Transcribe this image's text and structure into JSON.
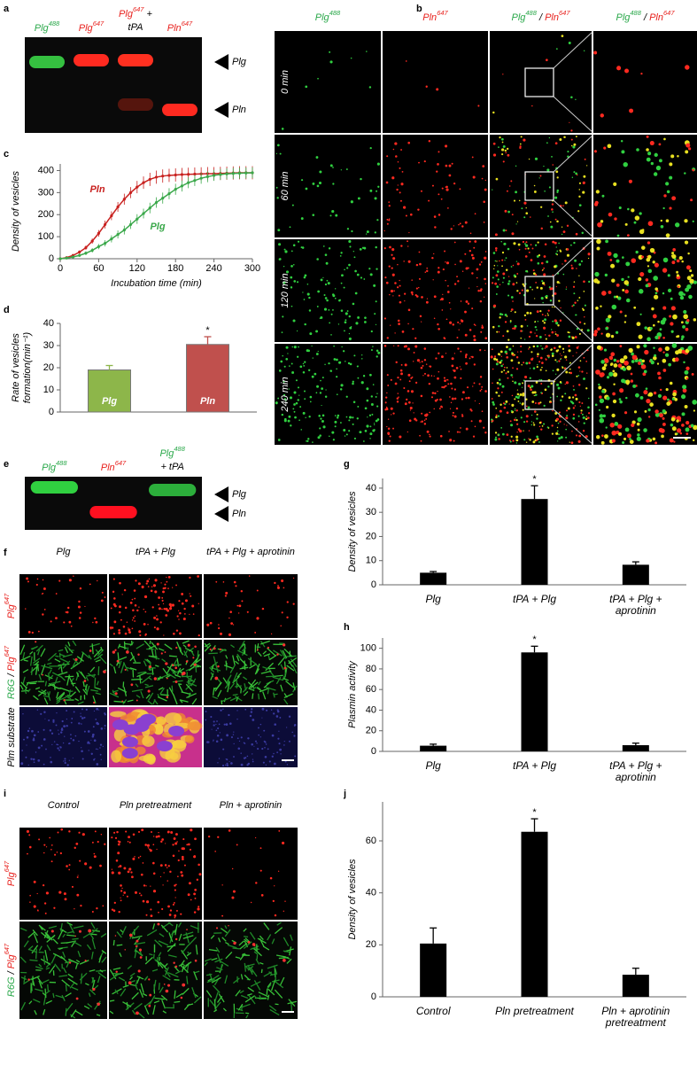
{
  "panels": [
    "a",
    "b",
    "c",
    "d",
    "e",
    "f",
    "g",
    "h",
    "i",
    "j"
  ],
  "gel_a": {
    "lanes": [
      {
        "label": [
          {
            "t": "Plg",
            "s": "488",
            "c": "#2aa84a"
          }
        ]
      },
      {
        "label": [
          {
            "t": "Plg",
            "s": "647",
            "c": "#e8211d"
          }
        ]
      },
      {
        "label": [
          {
            "t": "Plg",
            "s": "647",
            "c": "#e8211d"
          },
          {
            "t": " +"
          }
        ],
        "line2": [
          {
            "t": "tPA"
          }
        ]
      },
      {
        "label": [
          {
            "t": "Pln",
            "s": "647",
            "c": "#e8211d"
          }
        ]
      }
    ],
    "bands": [
      "Plg",
      "Pln"
    ]
  },
  "gel_e": {
    "lanes": [
      {
        "label": [
          {
            "t": "Plg",
            "s": "488",
            "c": "#2aa84a"
          }
        ]
      },
      {
        "label": [
          {
            "t": "Pln",
            "s": "647",
            "c": "#e8211d"
          }
        ]
      },
      {
        "label": [
          {
            "t": "Plg",
            "s": "488",
            "c": "#2aa84a"
          }
        ],
        "line2": [
          {
            "t": "+ tPA"
          }
        ]
      }
    ],
    "bands": [
      "Plg",
      "Pln"
    ]
  },
  "panel_b": {
    "columns": [
      [
        {
          "t": "Plg",
          "s": "488",
          "c": "#2aa84a"
        }
      ],
      [
        {
          "t": "Pln",
          "s": "647",
          "c": "#e8211d"
        }
      ],
      [
        {
          "t": "Plg",
          "s": "488",
          "c": "#2aa84a"
        },
        {
          "t": " / "
        },
        {
          "t": "Pln",
          "s": "647",
          "c": "#e8211d"
        }
      ],
      [
        {
          "t": "Plg",
          "s": "488",
          "c": "#2aa84a"
        },
        {
          "t": " / "
        },
        {
          "t": "Pln",
          "s": "647",
          "c": "#e8211d"
        }
      ]
    ],
    "rows": [
      "0 min",
      "60 min",
      "120 min",
      "240 min"
    ]
  },
  "panel_f": {
    "columns": [
      "Plg",
      "tPA + Plg",
      "tPA + Plg + aprotinin"
    ],
    "rows": [
      [
        {
          "t": "Plg",
          "s": "647",
          "c": "#e8211d"
        }
      ],
      [
        {
          "t": "R6G",
          "c": "#2aa84a"
        },
        {
          "t": " / "
        },
        {
          "t": "Plg",
          "s": "647",
          "c": "#e8211d"
        }
      ],
      [
        {
          "t": "Plm substrate"
        }
      ]
    ]
  },
  "panel_i": {
    "columns": [
      "Control",
      "Pln pretreatment",
      "Pln + aprotinin"
    ],
    "rows": [
      [
        {
          "t": "Plg",
          "s": "647",
          "c": "#e8211d"
        }
      ],
      [
        {
          "t": "R6G",
          "c": "#2aa84a"
        },
        {
          "t": " / "
        },
        {
          "t": "Plg",
          "s": "647",
          "c": "#e8211d"
        }
      ]
    ]
  },
  "chart_data": [
    {
      "type": "line",
      "ylabel": "Density of vesicles",
      "xlabel": "Incubation time (min)",
      "x": [
        0,
        10,
        20,
        30,
        40,
        50,
        60,
        70,
        80,
        90,
        100,
        110,
        120,
        130,
        140,
        150,
        160,
        170,
        180,
        190,
        200,
        210,
        220,
        230,
        240,
        250,
        260,
        270,
        280,
        290,
        300
      ],
      "xlim": [
        0,
        300
      ],
      "ylim": [
        0,
        430
      ],
      "xticks": [
        0,
        60,
        120,
        180,
        240,
        300
      ],
      "yticks": [
        0,
        100,
        200,
        300,
        400
      ],
      "series": [
        {
          "name": "Pln",
          "color": "#c8201e",
          "values": [
            0,
            5,
            15,
            30,
            50,
            80,
            115,
            155,
            195,
            235,
            270,
            300,
            325,
            345,
            360,
            370,
            375,
            378,
            380,
            382,
            383,
            384,
            385,
            386,
            386,
            387,
            388,
            389,
            390,
            390,
            390
          ],
          "errors": [
            0,
            3,
            5,
            8,
            10,
            12,
            15,
            18,
            20,
            22,
            25,
            25,
            28,
            28,
            30,
            30,
            30,
            30,
            30,
            30,
            30,
            30,
            30,
            30,
            30,
            30,
            30,
            30,
            30,
            30,
            30
          ]
        },
        {
          "name": "Plg",
          "color": "#3aa84a",
          "values": [
            0,
            3,
            8,
            15,
            25,
            38,
            55,
            70,
            90,
            110,
            130,
            155,
            180,
            205,
            230,
            255,
            275,
            295,
            315,
            330,
            345,
            355,
            365,
            372,
            378,
            382,
            385,
            387,
            388,
            389,
            390
          ],
          "errors": [
            0,
            2,
            4,
            6,
            8,
            10,
            12,
            14,
            16,
            18,
            20,
            20,
            22,
            22,
            24,
            24,
            25,
            25,
            25,
            25,
            25,
            25,
            25,
            25,
            25,
            25,
            25,
            25,
            25,
            25,
            25
          ]
        }
      ]
    },
    {
      "type": "bar",
      "ylabel": [
        "Rate of vesicles",
        "formation(min⁻¹)"
      ],
      "categories": [
        "Plg",
        "Pln"
      ],
      "values": [
        19,
        30.5
      ],
      "errors": [
        2,
        3.5
      ],
      "colors": [
        "#8db64a",
        "#c0504d"
      ],
      "markers": [
        null,
        "*"
      ],
      "ylim": [
        0,
        40
      ],
      "yticks": [
        0,
        10,
        20,
        30,
        40
      ]
    },
    {
      "type": "bar",
      "ylabel": [
        "Density of vesicles"
      ],
      "categories": [
        "Plg",
        "tPA + Plg",
        "tPA + Plg + aprotinin"
      ],
      "values": [
        5,
        35.5,
        8.3
      ],
      "errors": [
        0.5,
        5.5,
        1.2
      ],
      "colors": [
        "#000000",
        "#000000",
        "#000000"
      ],
      "markers": [
        null,
        "*",
        null
      ],
      "ylim": [
        0,
        44
      ],
      "yticks": [
        0,
        10,
        20,
        30,
        40
      ]
    },
    {
      "type": "bar",
      "ylabel": [
        "Plasmin activity"
      ],
      "categories": [
        "Plg",
        "tPA + Plg",
        "tPA + Plg + aprotinin"
      ],
      "values": [
        5.5,
        96,
        6
      ],
      "errors": [
        1.5,
        6,
        2
      ],
      "colors": [
        "#000000",
        "#000000",
        "#000000"
      ],
      "markers": [
        null,
        "*",
        null
      ],
      "ylim": [
        0,
        110
      ],
      "yticks": [
        0,
        20,
        40,
        60,
        80,
        100
      ]
    },
    {
      "type": "bar",
      "ylabel": [
        "Density of vesicles"
      ],
      "categories": [
        "Control",
        "Pln pretreatment",
        "Pln + aprotinin pretreatment"
      ],
      "values": [
        20.5,
        63.5,
        8.5
      ],
      "errors": [
        6,
        5,
        2.5
      ],
      "colors": [
        "#000000",
        "#000000",
        "#000000"
      ],
      "markers": [
        null,
        "*",
        null
      ],
      "ylim": [
        0,
        75
      ],
      "yticks": [
        0,
        20,
        40,
        60
      ]
    }
  ]
}
